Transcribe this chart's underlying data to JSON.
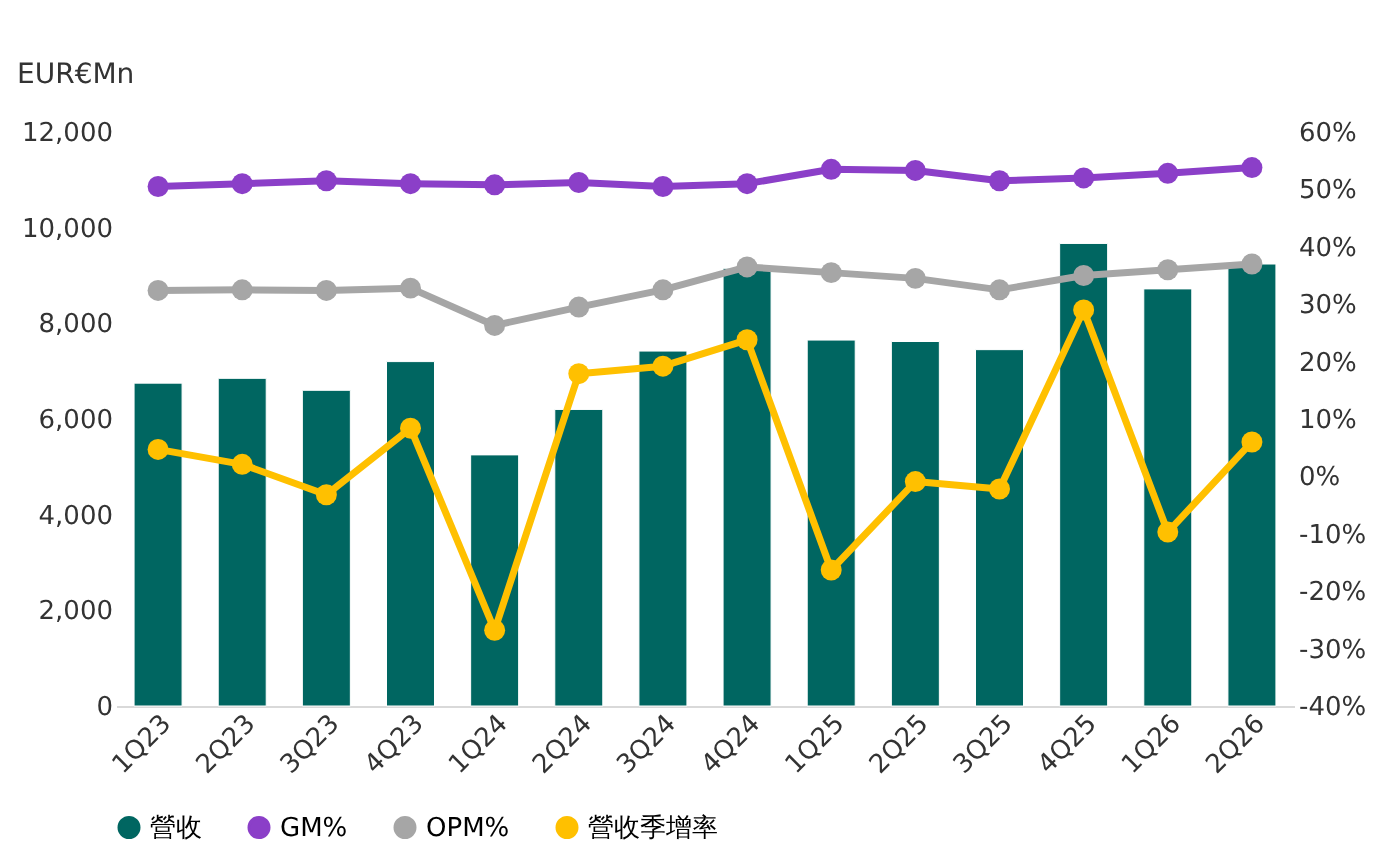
{
  "chart_data": {
    "type": "bar",
    "ylabel": "EUR€Mn",
    "categories": [
      "1Q23",
      "2Q23",
      "3Q23",
      "4Q23",
      "1Q24",
      "2Q24",
      "3Q24",
      "4Q24",
      "1Q25",
      "2Q25",
      "3Q25",
      "4Q25",
      "1Q26",
      "2Q26"
    ],
    "series": [
      {
        "name": "營收",
        "color": "#006661",
        "values": [
          6750,
          6850,
          6600,
          7200,
          5250,
          6200,
          7420,
          9150,
          7650,
          7620,
          7450,
          9670,
          8720,
          9240
        ]
      },
      {
        "name": "GM%",
        "type": "line",
        "axis": "y2",
        "color": "#8b3fc8",
        "values": [
          50.5,
          51,
          51.5,
          51,
          50.8,
          51.2,
          50.5,
          51,
          53.5,
          53.3,
          51.5,
          52,
          52.8,
          53.8
        ]
      },
      {
        "name": "OPM%",
        "type": "line",
        "axis": "y2",
        "color": "#a6a6a6",
        "values": [
          32.4,
          32.5,
          32.4,
          32.8,
          26.3,
          29.5,
          32.5,
          36.5,
          35.5,
          34.5,
          32.5,
          35,
          36,
          37
        ]
      },
      {
        "name": "營收季增率",
        "type": "line",
        "axis": "y2",
        "color": "#ffc000",
        "values": [
          4.7,
          2.1,
          -3.2,
          8.4,
          -26.8,
          17.9,
          19.2,
          23.8,
          -16.3,
          -0.9,
          -2.2,
          29,
          -9.7,
          6
        ]
      }
    ],
    "ylim": [
      0,
      12000
    ],
    "yticks": [
      0,
      {
        "value": 2000,
        "label": "2,000"
      },
      {
        "value": 4000,
        "label": "4,000"
      },
      {
        "value": 6000,
        "label": "6,000"
      },
      {
        "value": 8000,
        "label": "8,000"
      },
      {
        "value": 10000,
        "label": "10,000"
      },
      {
        "value": 12000,
        "label": "12,000"
      }
    ],
    "y2lim": [
      -40,
      60
    ],
    "y2ticks": [
      {
        "value": -40,
        "label": "-40%"
      },
      {
        "value": -30,
        "label": "-30%"
      },
      {
        "value": -20,
        "label": "-20%"
      },
      {
        "value": -10,
        "label": "-10%"
      },
      {
        "value": 0,
        "label": "0%"
      },
      {
        "value": 10,
        "label": "10%"
      },
      {
        "value": 20,
        "label": "20%"
      },
      {
        "value": 30,
        "label": "30%"
      },
      {
        "value": 40,
        "label": "40%"
      },
      {
        "value": 50,
        "label": "50%"
      },
      {
        "value": 60,
        "label": "60%"
      }
    ],
    "grid": false,
    "legend": "bottom",
    "marker": "circle",
    "line_style": "solid"
  }
}
